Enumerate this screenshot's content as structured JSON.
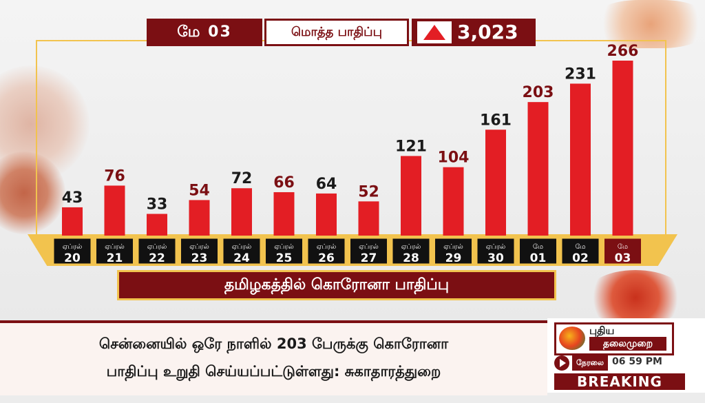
{
  "header": {
    "date": "மே 03",
    "total_label": "மொத்த பாதிப்பு",
    "total_value": "3,023"
  },
  "chart_data": {
    "type": "bar",
    "title": "தமிழகத்தில் கொரோனா பாதிப்பு",
    "categories": [
      {
        "month": "ஏப்ரல்",
        "day": "20"
      },
      {
        "month": "ஏப்ரல்",
        "day": "21"
      },
      {
        "month": "ஏப்ரல்",
        "day": "22"
      },
      {
        "month": "ஏப்ரல்",
        "day": "23"
      },
      {
        "month": "ஏப்ரல்",
        "day": "24"
      },
      {
        "month": "ஏப்ரல்",
        "day": "25"
      },
      {
        "month": "ஏப்ரல்",
        "day": "26"
      },
      {
        "month": "ஏப்ரல்",
        "day": "27"
      },
      {
        "month": "ஏப்ரல்",
        "day": "28"
      },
      {
        "month": "ஏப்ரல்",
        "day": "29"
      },
      {
        "month": "ஏப்ரல்",
        "day": "30"
      },
      {
        "month": "மே",
        "day": "01"
      },
      {
        "month": "மே",
        "day": "02"
      },
      {
        "month": "மே",
        "day": "03"
      }
    ],
    "values": [
      43,
      76,
      33,
      54,
      72,
      66,
      64,
      52,
      121,
      104,
      161,
      203,
      231,
      266
    ],
    "ylim": [
      0,
      266
    ],
    "bar_color": "#e31e24",
    "label_colors": [
      "#1a1a1a",
      "#7b0f13"
    ],
    "highlight_index": 13,
    "grid": false
  },
  "ticker": {
    "line1": "சென்னையில் ஒரே நாளில் 203 பேருக்கு கொரோனா",
    "line2": "பாதிப்பு உறுதி செய்யப்பட்டுள்ளது: சுகாதாரத்துறை"
  },
  "brand": {
    "logo_line1": "புதிய",
    "logo_line2": "தலைமுறை",
    "live_label": "நேரலை",
    "time": "06 59 PM",
    "breaking": "BREAKING"
  },
  "colors": {
    "maroon": "#7b0f13",
    "gold": "#f2c34e",
    "red": "#e31e24"
  }
}
